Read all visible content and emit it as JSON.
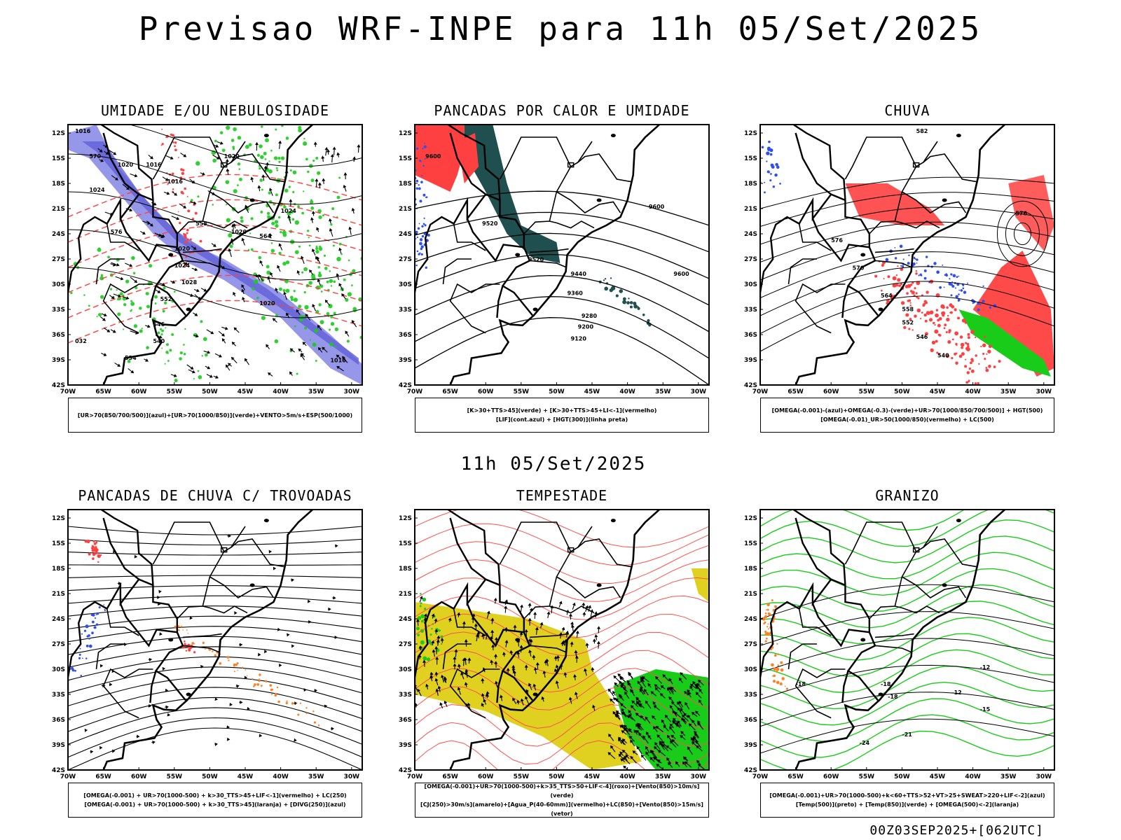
{
  "header": {
    "title": "Previsao WRF-INPE  para 11h 05/Set/2025"
  },
  "mid_time": "11h 05/Set/2025",
  "footer": "00Z03SEP2025+[062UTC]",
  "axes": {
    "lat_labels": [
      "12S",
      "15S",
      "18S",
      "21S",
      "24S",
      "27S",
      "30S",
      "33S",
      "36S",
      "39S",
      "42S"
    ],
    "lon_labels": [
      "70W",
      "65W",
      "60W",
      "55W",
      "50W",
      "45W",
      "40W",
      "35W",
      "30W"
    ]
  },
  "colors": {
    "blue_fill": "#8c8ce8",
    "green": "#19cc19",
    "red": "#ff4040",
    "dark_teal": "#1f4f4f",
    "blue_dots": "#2f4ff0",
    "yellow": "#e0d020",
    "orange": "#ff8020",
    "black": "#000000"
  },
  "chart_data": [
    {
      "type": "map",
      "title": "UMIDADE E/OU NEBULOSIDADE",
      "legend": [
        "[UR>70(850/700/500)](azul)+[UR>70(1000/850)](verde)+VENTO>5m/s+ESP(500/1000)"
      ],
      "contour_labels": [
        "1016",
        "1020",
        "1016",
        "1016",
        "1020",
        "1024",
        "1020",
        "1020",
        "1024",
        "1028",
        "1020",
        "1024",
        "1016",
        "564",
        "570",
        "576",
        "558",
        "552",
        "546",
        "540",
        "534",
        "032"
      ]
    },
    {
      "type": "map",
      "title": "PANCADAS POR CALOR E UMIDADE",
      "legend": [
        "[K>30+TTS>45](verde) + [K>30+TTS>45+LI<-1](vermelho)",
        "[LIF](cont.azul) + [HGT(300)](linha preta)"
      ],
      "contour_labels": [
        "9600",
        "9520",
        "9440",
        "9360",
        "9280",
        "9200",
        "9120",
        "9600",
        "9520",
        "9600"
      ]
    },
    {
      "type": "map",
      "title": "CHUVA",
      "legend": [
        "[OMEGA(-0.001)-(azul)+OMEGA(-0.3)-(verde)+UR>70(1000/850/700/500)] + HGT(500)",
        "[OMEGA(-0.01)_UR>50(1000/850)(vermelho) + LC(500)"
      ],
      "contour_labels": [
        "582",
        "576",
        "570",
        "564",
        "558",
        "552",
        "546",
        "540",
        "576"
      ]
    },
    {
      "type": "map",
      "title": "PANCADAS DE CHUVA C/ TROVOADAS",
      "legend": [
        "[OMEGA(-0.001) + UR>70(1000-500) + k>30_TTS>45+LIF<-1](vermelho) + LC(250)",
        "[OMEGA(-0.001) + UR>70(1000-500) + k>30_TTS>45](laranja) + [DIVG(250)](azul)"
      ],
      "contour_labels": []
    },
    {
      "type": "map",
      "title": "TEMPESTADE",
      "legend": [
        "[OMEGA(-0.001)+UR>70(1000-500)+k>35_TTS>50+LIF<-4](roxo)+[Vento(850)>10m/s](verde)",
        "[CJ(250)>30m/s](amarelo)+[Agua_P(40-60mm)](vermelho)+LC(850)+[Vento(850)>15m/s](vetor)"
      ],
      "contour_labels": []
    },
    {
      "type": "map",
      "title": "GRANIZO",
      "legend": [
        "[OMEGA(-0.001)+UR>70(1000-500)+k<60+TTS>52+VT>25+SWEAT>220+LIF<-2](azul)",
        "[Temp(500)](preto) + [Temp(850)](verde) + [OMEGA(500)<-2](laranja)"
      ],
      "contour_labels": [
        "-12",
        "-12",
        "-15",
        "-18",
        "-18",
        "-18",
        "-21",
        "-24"
      ]
    }
  ]
}
